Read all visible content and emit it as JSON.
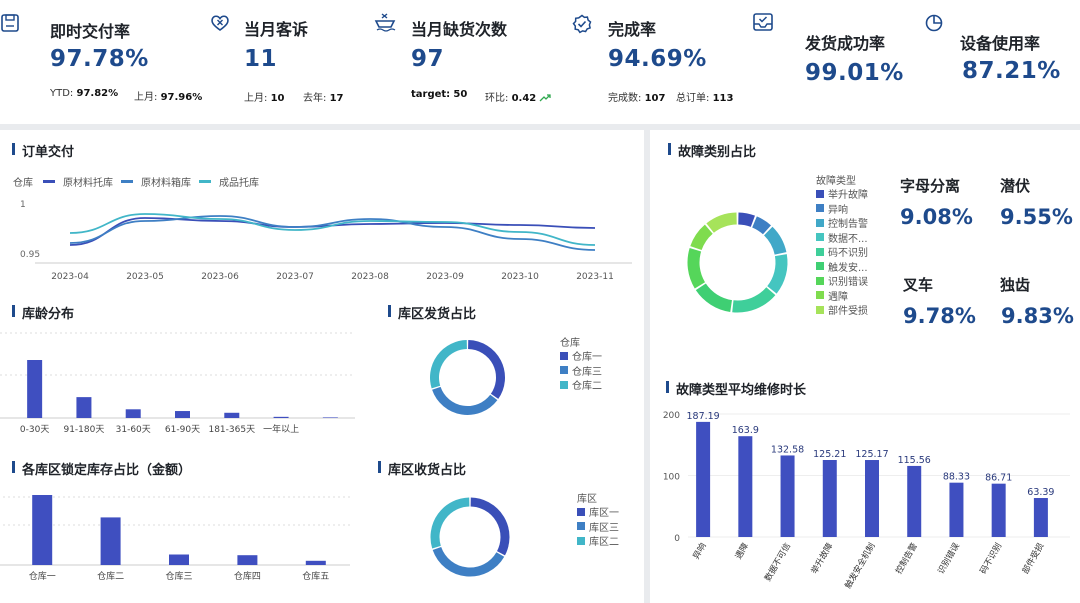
{
  "kpis": {
    "ontime": {
      "title": "即时交付率",
      "value": "97.78%",
      "ytd_label": "YTD:",
      "ytd_value": "97.82%",
      "last_label": "上月:",
      "last_value": "97.96%",
      "icon": "save-icon"
    },
    "complaints": {
      "title": "当月客诉",
      "value": "11",
      "last_label": "上月:",
      "last_value": "10",
      "lastyear_label": "去年:",
      "lastyear_value": "17",
      "icon": "heart-x-icon"
    },
    "shortage": {
      "title": "当月缺货次数",
      "value": "97",
      "target_label": "target:",
      "target_value": "50",
      "mom_label": "环比:",
      "mom_value": "0.42",
      "icon": "sink-icon"
    },
    "completion": {
      "title": "完成率",
      "value": "94.69%",
      "done_label": "完成数:",
      "done_value": "107",
      "total_label": "总订单:",
      "total_value": "113",
      "icon": "badge-check-icon"
    },
    "shipping": {
      "title": "发货成功率",
      "value": "99.01%",
      "icon": "inbox-check-icon"
    },
    "equipment": {
      "title": "设备使用率",
      "value": "87.21%",
      "icon": "pie-icon"
    }
  },
  "colors": {
    "primary": "#1e4a8c",
    "series1": "#3a4fb8",
    "series2": "#3e7fc4",
    "series3": "#41b6c8",
    "bar": "#3f4fc0",
    "trend_up": "#2fa84f"
  },
  "order_delivery": {
    "title": "订单交付",
    "legend_title": "仓库",
    "chart_data": {
      "type": "line",
      "x": [
        "2023-04",
        "2023-05",
        "2023-06",
        "2023-07",
        "2023-08",
        "2023-09",
        "2023-10",
        "2023-11"
      ],
      "y_ticks": [
        "1",
        "0.95"
      ],
      "ylim": [
        0.95,
        1
      ],
      "series": [
        {
          "name": "原材料托库",
          "values": [
            0.958,
            0.985,
            0.982,
            0.976,
            0.979,
            0.98,
            0.978,
            0.975
          ]
        },
        {
          "name": "原材料箱库",
          "values": [
            0.96,
            0.982,
            0.987,
            0.976,
            0.984,
            0.976,
            0.964,
            0.953
          ]
        },
        {
          "name": "成品托库",
          "values": [
            0.97,
            0.989,
            0.984,
            0.973,
            0.982,
            0.981,
            0.971,
            0.958
          ]
        }
      ]
    }
  },
  "aging": {
    "title": "库龄分布",
    "chart_data": {
      "type": "bar",
      "categories": [
        "0-30天",
        "91-180天",
        "31-60天",
        "61-90天",
        "181-365天",
        "一年以上",
        ""
      ],
      "values": [
        100,
        36,
        15,
        12,
        9,
        2,
        1
      ]
    }
  },
  "zone_ship": {
    "title": "库区发货占比",
    "legend_title": "仓库",
    "chart_data": {
      "type": "pie",
      "labels": [
        "仓库一",
        "仓库三",
        "仓库二"
      ],
      "values": [
        35,
        35,
        30
      ]
    }
  },
  "locked_stock": {
    "title": "各库区锁定库存占比（金额）",
    "chart_data": {
      "type": "bar",
      "categories": [
        "仓库一",
        "仓库二",
        "仓库三",
        "仓库四",
        "仓库五"
      ],
      "values": [
        100,
        68,
        15,
        14,
        6
      ]
    }
  },
  "zone_receive": {
    "title": "库区收货占比",
    "legend_title": "库区",
    "chart_data": {
      "type": "pie",
      "labels": [
        "库区一",
        "库区三",
        "库区二"
      ],
      "values": [
        33,
        37,
        30
      ]
    }
  },
  "fault_types": {
    "title": "故障类别占比",
    "legend_title": "故障类型",
    "chart_data": {
      "type": "pie",
      "labels": [
        "举升故障",
        "异响",
        "控制告警",
        "数据不...",
        "码不识别",
        "触发安...",
        "识别错误",
        "遇障",
        "部件受损"
      ],
      "values": [
        6,
        6,
        10,
        14,
        16,
        14,
        14,
        9,
        11
      ],
      "colors": [
        "#3a4fb8",
        "#3e7fc4",
        "#41a8c8",
        "#45c5c0",
        "#3fcf9a",
        "#3fcf73",
        "#55d65a",
        "#7fdc4e",
        "#a6e35a"
      ]
    },
    "stats": [
      {
        "label": "字母分离",
        "value": "9.08%"
      },
      {
        "label": "潜伏",
        "value": "9.55%"
      },
      {
        "label": "叉车",
        "value": "9.78%"
      },
      {
        "label": "独齿",
        "value": "9.83%"
      }
    ]
  },
  "repair_time": {
    "title": "故障类型平均维修时长",
    "chart_data": {
      "type": "bar",
      "categories": [
        "异响",
        "遇障",
        "数据不可信",
        "举升故障",
        "触发安全机制",
        "控制告警",
        "识别错误",
        "码不识别",
        "部件受损"
      ],
      "values": [
        187.19,
        163.9,
        132.58,
        125.21,
        125.17,
        115.56,
        88.33,
        86.71,
        63.39
      ],
      "y_ticks": [
        200,
        100,
        0
      ],
      "ylim": [
        0,
        200
      ]
    }
  }
}
